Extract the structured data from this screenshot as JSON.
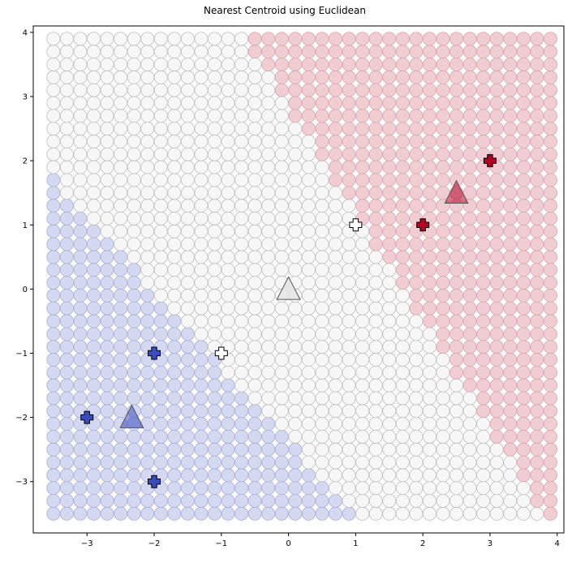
{
  "chart_data": {
    "type": "scatter",
    "title": "Nearest Centroid using Euclidean",
    "xlabel": "",
    "ylabel": "",
    "xlim": [
      -3.8,
      4.1
    ],
    "ylim": [
      -3.8,
      4.1
    ],
    "x_ticks": [
      -3,
      -2,
      -1,
      0,
      1,
      2,
      3,
      4
    ],
    "y_ticks": [
      -3,
      -2,
      -1,
      0,
      1,
      2,
      3,
      4
    ],
    "x_tick_labels": [
      "−3",
      "−2",
      "−1",
      "0",
      "1",
      "2",
      "3",
      "4"
    ],
    "y_tick_labels": [
      "−3",
      "−2",
      "−1",
      "0",
      "1",
      "2",
      "3",
      "4"
    ],
    "grid": false,
    "decision_grid": {
      "x_range": [
        -3.5,
        3.9
      ],
      "y_range": [
        -3.5,
        3.9
      ],
      "step": 0.2
    },
    "classes": [
      {
        "id": "blue",
        "color": "#3b4cc0"
      },
      {
        "id": "white",
        "color": "#dddddd"
      },
      {
        "id": "red",
        "color": "#b40426"
      }
    ],
    "training_points": [
      {
        "x": -3,
        "y": -2,
        "class": "blue"
      },
      {
        "x": -2,
        "y": -1,
        "class": "blue"
      },
      {
        "x": -2,
        "y": -3,
        "class": "blue"
      },
      {
        "x": -1,
        "y": -1,
        "class": "white"
      },
      {
        "x": 1,
        "y": 1,
        "class": "white"
      },
      {
        "x": 2,
        "y": 1,
        "class": "red"
      },
      {
        "x": 3,
        "y": 2,
        "class": "red"
      }
    ],
    "centroids": [
      {
        "x": -2.333,
        "y": -2.0,
        "class": "blue"
      },
      {
        "x": 0.0,
        "y": 0.0,
        "class": "white"
      },
      {
        "x": 2.5,
        "y": 1.5,
        "class": "red"
      }
    ]
  }
}
